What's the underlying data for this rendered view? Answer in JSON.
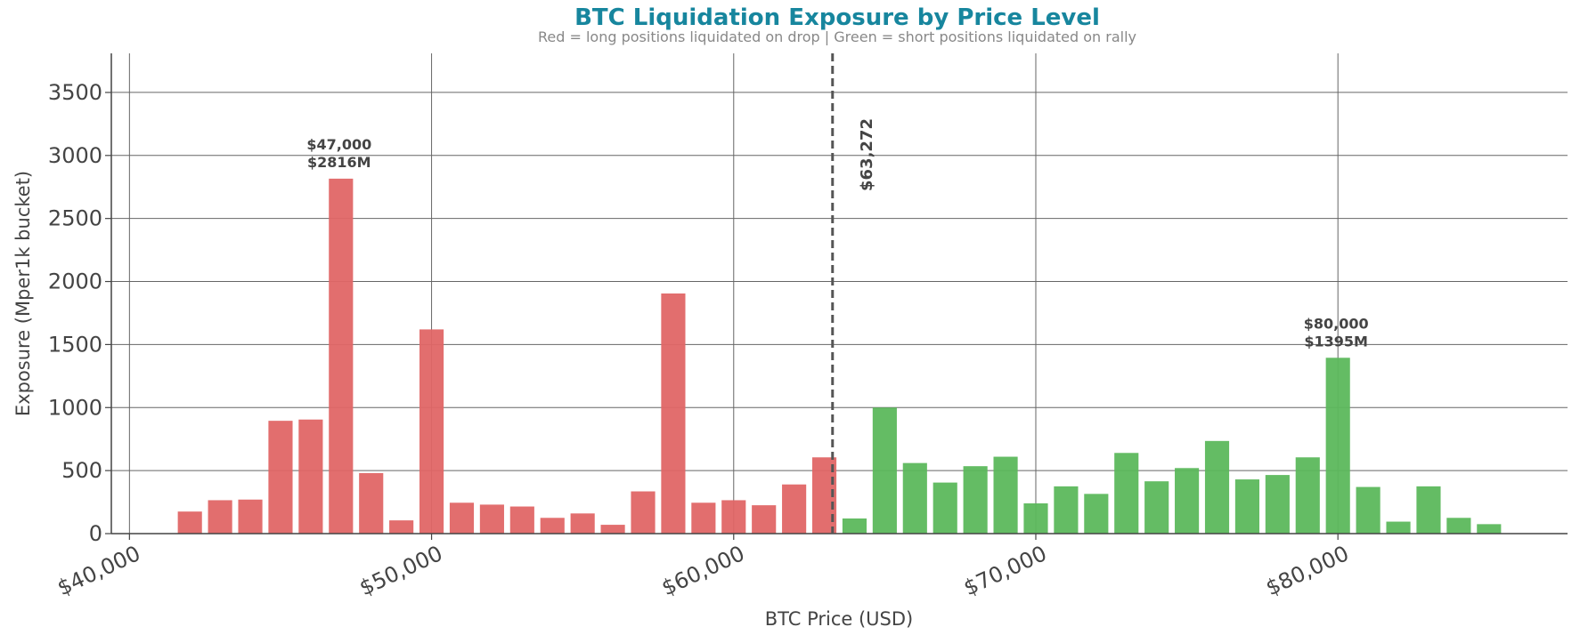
{
  "chart_data": {
    "type": "bar",
    "title": "BTC Liquidation Exposure by Price Level",
    "subtitle": "Red = long positions liquidated on drop  |  Green = short positions liquidated on rally",
    "x_label": "BTC Price (USD)",
    "y_label": "Exposure (Mper1k bucket)",
    "series": [
      {
        "name": "long positions",
        "color": "#e06666",
        "x": [
          42000,
          43000,
          44000,
          45000,
          46000,
          47000,
          48000,
          49000,
          50000,
          51000,
          52000,
          53000,
          54000,
          55000,
          56000,
          57000,
          58000,
          59000,
          60000,
          61000,
          62000,
          63000
        ],
        "values": [
          175,
          265,
          270,
          895,
          905,
          2816,
          480,
          105,
          1620,
          245,
          230,
          215,
          125,
          160,
          70,
          335,
          1905,
          245,
          265,
          225,
          390,
          605
        ]
      },
      {
        "name": "short positions",
        "color": "#5cb85c",
        "x": [
          64000,
          65000,
          66000,
          67000,
          68000,
          69000,
          70000,
          71000,
          72000,
          73000,
          74000,
          75000,
          76000,
          77000,
          78000,
          79000,
          80000,
          81000,
          82000,
          83000,
          84000,
          85000
        ],
        "values": [
          120,
          1000,
          560,
          405,
          535,
          610,
          240,
          375,
          315,
          640,
          415,
          520,
          735,
          430,
          465,
          605,
          1395,
          370,
          95,
          375,
          125,
          75
        ]
      }
    ],
    "xlim": [
      39400,
      87600
    ],
    "ylim": [
      0,
      3810
    ],
    "xticks": [
      {
        "value": 40000,
        "label": "$40,000"
      },
      {
        "value": 50000,
        "label": "$50,000"
      },
      {
        "value": 60000,
        "label": "$60,000"
      },
      {
        "value": 70000,
        "label": "$70,000"
      },
      {
        "value": 80000,
        "label": "$80,000"
      }
    ],
    "yticks": [
      0,
      500,
      1000,
      1500,
      2000,
      2500,
      3000,
      3500
    ],
    "grid": true,
    "current_price": {
      "value": 63272,
      "label": "$63,272"
    },
    "annotations": [
      {
        "x": 47000,
        "y": 2816,
        "lines": [
          "$47,000",
          "$2816M"
        ]
      },
      {
        "x": 80000,
        "y": 1395,
        "lines": [
          "$80,000",
          "$1395M"
        ]
      }
    ]
  }
}
